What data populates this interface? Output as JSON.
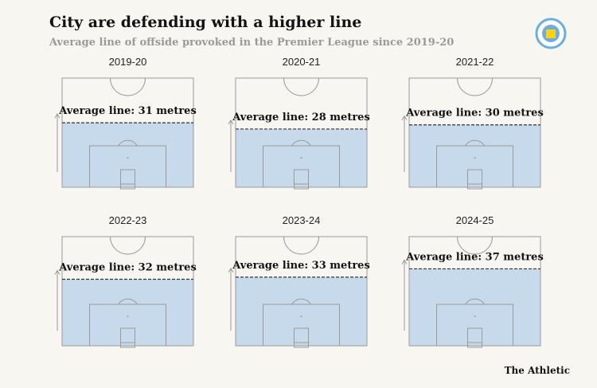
{
  "title": "City are defending with a higher line",
  "subtitle": "Average line of offside provoked in the Premier League since 2019-20",
  "brand": "The Athletic",
  "chart_data": [
    {
      "type": "pitch",
      "title": "2019-20",
      "values": [
        31
      ],
      "value_labels": [
        "Average line: 31 metres"
      ],
      "ylim": [
        0,
        52.5
      ],
      "color": "#c6daec"
    },
    {
      "type": "pitch",
      "title": "2020-21",
      "values": [
        28
      ],
      "value_labels": [
        "Average line: 28 metres"
      ],
      "ylim": [
        0,
        52.5
      ],
      "color": "#c6daec"
    },
    {
      "type": "pitch",
      "title": "2021-22",
      "values": [
        30
      ],
      "value_labels": [
        "Average line: 30 metres"
      ],
      "ylim": [
        0,
        52.5
      ],
      "color": "#c6daec"
    },
    {
      "type": "pitch",
      "title": "2022-23",
      "values": [
        32
      ],
      "value_labels": [
        "Average line: 32 metres"
      ],
      "ylim": [
        0,
        52.5
      ],
      "color": "#c6daec"
    },
    {
      "type": "pitch",
      "title": "2023-24",
      "values": [
        33
      ],
      "value_labels": [
        "Average line: 33 metres"
      ],
      "ylim": [
        0,
        52.5
      ],
      "color": "#c6daec"
    },
    {
      "type": "pitch",
      "title": "2024-25",
      "values": [
        37
      ],
      "value_labels": [
        "Average line: 37 metres"
      ],
      "ylim": [
        0,
        52.5
      ],
      "color": "#c6daec"
    }
  ]
}
